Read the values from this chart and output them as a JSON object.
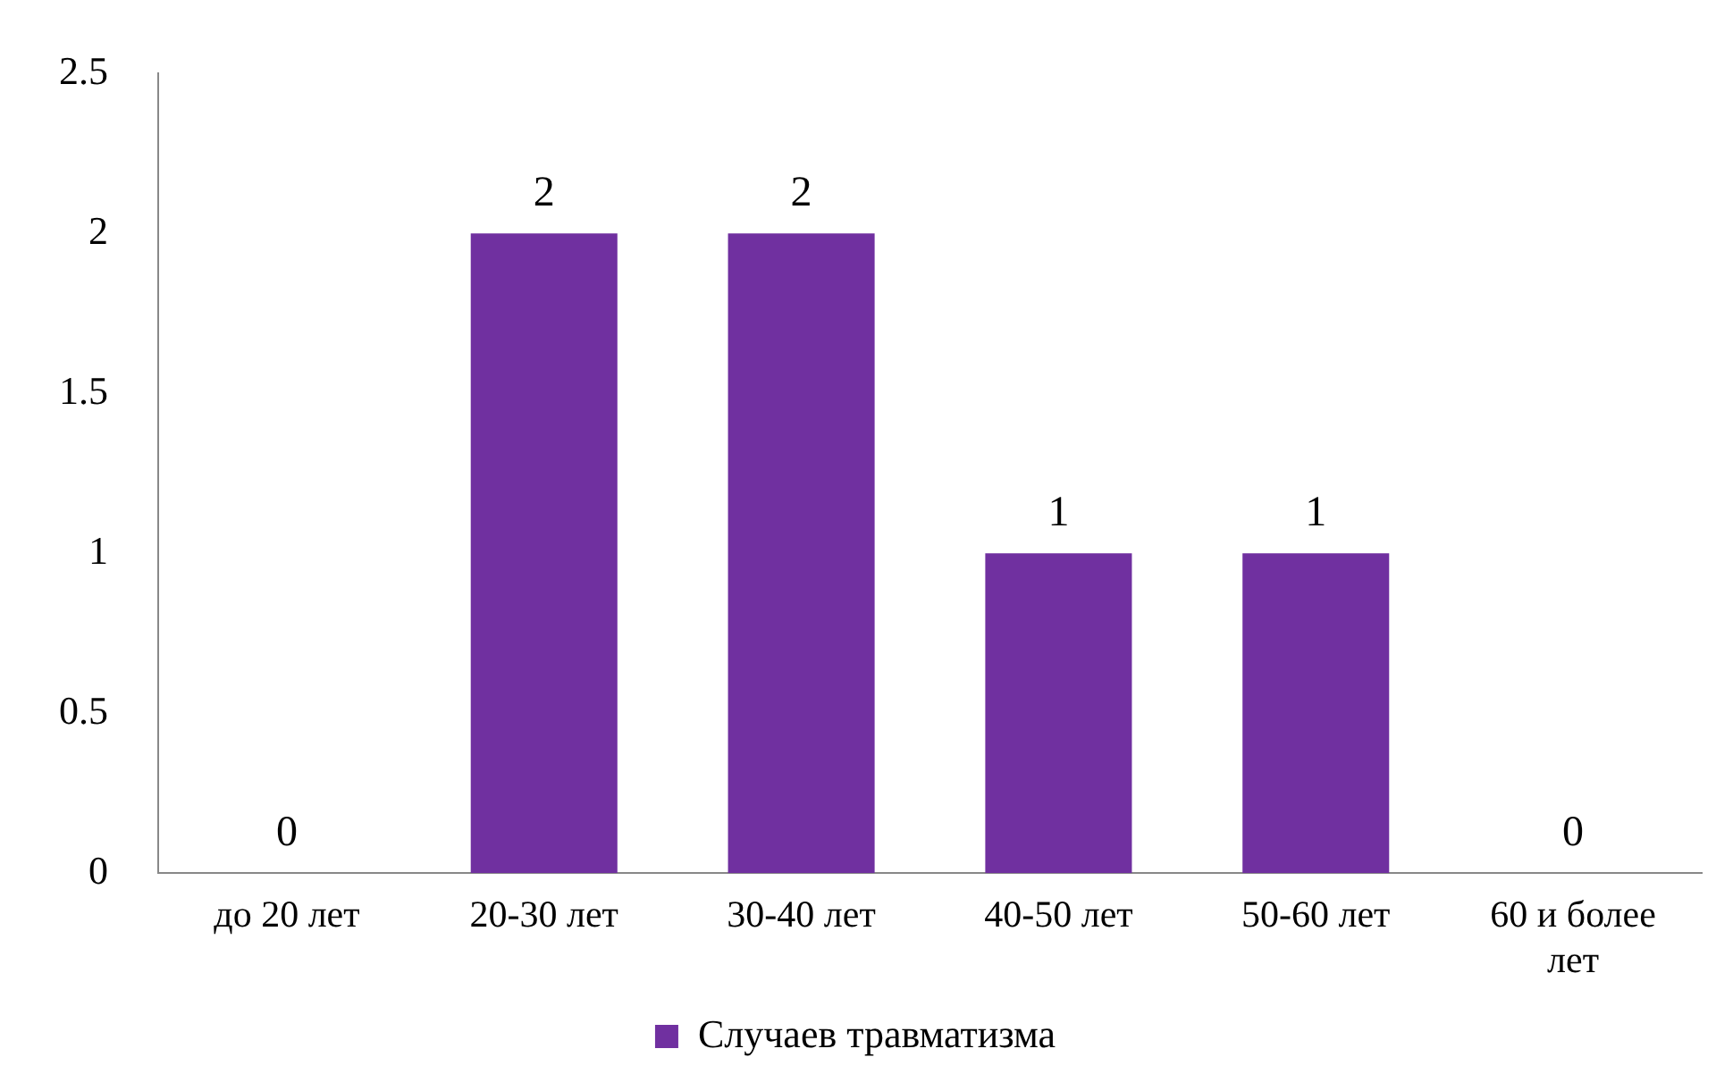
{
  "chart_data": {
    "type": "bar",
    "categories": [
      "до 20 лет",
      "20-30 лет",
      "30-40 лет",
      "40-50 лет",
      "50-60 лет",
      "60 и более лет"
    ],
    "series": [
      {
        "name": "Случаев травматизма",
        "color": "#7030a0",
        "values": [
          0,
          2,
          2,
          1,
          1,
          0
        ]
      }
    ],
    "ylim": [
      0,
      2.5
    ],
    "yticks": [
      0,
      0.5,
      1,
      1.5,
      2,
      2.5
    ],
    "grid": false,
    "legend": "bottom",
    "data_labels": true
  }
}
